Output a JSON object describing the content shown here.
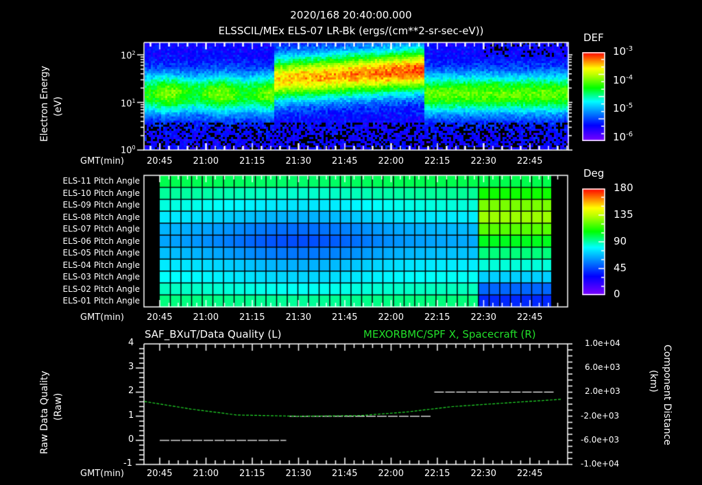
{
  "header": {
    "timestamp": "2020/168 20:40:00.000",
    "title": "ELSSCIL/MEx ELS-07 LR-Bk  (ergs/(cm**2-sr-sec-eV))"
  },
  "time_axis": {
    "label": "GMT(min)",
    "ticks": [
      "20:45",
      "21:00",
      "21:15",
      "21:30",
      "21:45",
      "22:00",
      "22:15",
      "22:30",
      "22:45"
    ]
  },
  "colors": {
    "background": "#000000",
    "foreground": "#ffffff",
    "series_right": "#22e02a"
  },
  "chart_data": [
    {
      "type": "heatmap",
      "title": "ELSSCIL/MEx ELS-07 LR-Bk  (ergs/(cm**2-sr-sec-eV))",
      "xlabel": "GMT(min)",
      "ylabel": "Electron Energy (eV)",
      "yscale": "log",
      "ylim": [
        1,
        180
      ],
      "y_ticks": [
        "10^0",
        "10^1",
        "10^2"
      ],
      "colorbar": {
        "label": "DEF",
        "scale": "log",
        "range": [
          1e-06,
          0.001
        ],
        "ticks": [
          "10^-3",
          "10^-4",
          "10^-5",
          "10^-6"
        ]
      },
      "features": [
        {
          "time_range": [
            "20:40",
            "21:20"
          ],
          "band_energy_eV": [
            8,
            30
          ],
          "level": "~1e-5 (cyan)"
        },
        {
          "time_range": [
            "21:20",
            "22:08"
          ],
          "band_energy_eV": [
            12,
            70
          ],
          "level": "~1e-4 (green/yellow)"
        },
        {
          "time_range": [
            "22:08",
            "22:55"
          ],
          "band_energy_eV": [
            8,
            30
          ],
          "level": "~1e-5 (cyan)"
        }
      ]
    },
    {
      "type": "heatmap",
      "title": "Pitch Angle",
      "xlabel": "GMT(min)",
      "rows": [
        "ELS-11 Pitch Angle",
        "ELS-10 Pitch Angle",
        "ELS-09 Pitch Angle",
        "ELS-08 Pitch Angle",
        "ELS-07 Pitch Angle",
        "ELS-06 Pitch Angle",
        "ELS-05 Pitch Angle",
        "ELS-04 Pitch Angle",
        "ELS-03 Pitch Angle",
        "ELS-02 Pitch Angle",
        "ELS-01 Pitch Angle"
      ],
      "colorbar": {
        "label": "Deg",
        "range": [
          0,
          180
        ],
        "ticks": [
          "180",
          "135",
          "90",
          "45",
          "0"
        ]
      },
      "segments": [
        {
          "time_range": [
            "20:45",
            "22:28"
          ],
          "row_values_deg": [
            100,
            92,
            85,
            78,
            68,
            65,
            70,
            78,
            82,
            88,
            95
          ],
          "min_at": "21:30",
          "min_deg": 55
        },
        {
          "time_range": [
            "22:28",
            "22:54"
          ],
          "row_values_deg": [
            100,
            110,
            125,
            130,
            120,
            105,
            95,
            85,
            72,
            52,
            40
          ]
        }
      ]
    },
    {
      "type": "line",
      "title_left": "SAF_BXuT/Data Quality (L)",
      "title_right": "MEXORBMC/SPF X, Spacecraft (R)",
      "xlabel": "GMT(min)",
      "ylabel_left": "Raw Data Quality (Raw)",
      "ylabel_right": "Component Distance (km)",
      "ylim_left": [
        -1,
        4
      ],
      "yticks_left": [
        "4",
        "3",
        "2",
        "1",
        "0",
        "-1"
      ],
      "ylim_right": [
        -10000,
        10000
      ],
      "yticks_right": [
        "1.0e+04",
        "6.0e+03",
        "2.0e+03",
        "-2.0e+03",
        "-6.0e+03",
        "-1.0e+04"
      ],
      "series": [
        {
          "name": "Data Quality (L)",
          "color": "#ffffff",
          "points": [
            [
              "20:45",
              0
            ],
            [
              "21:26",
              0
            ],
            [
              "21:27",
              1
            ],
            [
              "22:13",
              1
            ],
            [
              "22:14",
              2
            ],
            [
              "22:53",
              2
            ]
          ]
        },
        {
          "name": "SPF X (R)",
          "color": "#22e02a",
          "points": [
            [
              "20:40",
              450
            ],
            [
              "20:55",
              -800
            ],
            [
              "21:10",
              -1800
            ],
            [
              "21:30",
              -2000
            ],
            [
              "21:50",
              -1900
            ],
            [
              "22:05",
              -1300
            ],
            [
              "22:20",
              -400
            ],
            [
              "22:40",
              300
            ],
            [
              "22:55",
              800
            ]
          ]
        }
      ]
    }
  ]
}
